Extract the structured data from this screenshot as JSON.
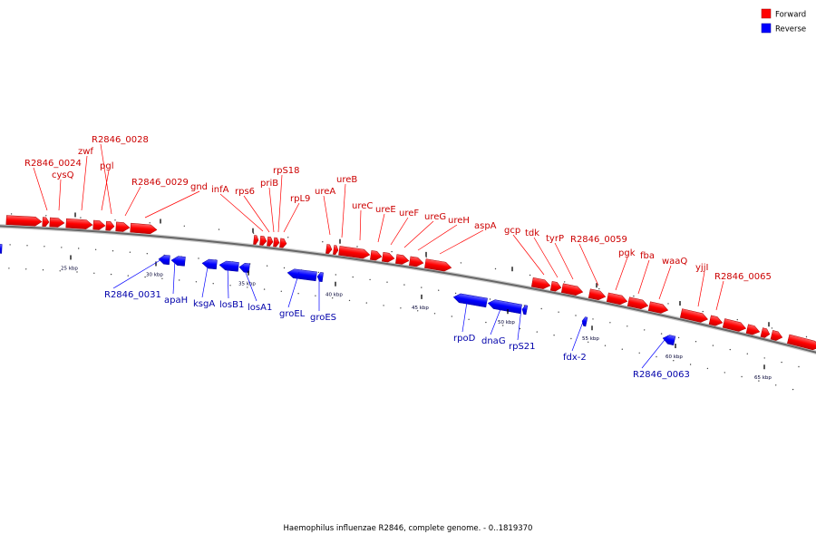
{
  "caption": "Haemophilus influenzae R2846, complete genome. - 0..1819370",
  "legend": [
    {
      "label": "Forward",
      "color": "#ff0000"
    },
    {
      "label": "Reverse",
      "color": "#0000ff"
    }
  ],
  "colors": {
    "forward": "#ff0000",
    "forward_label": "#cc0000",
    "reverse": "#0000ff",
    "reverse_label": "#0000aa",
    "backbone": "#777777"
  },
  "ticks": [
    {
      "label": "25 kbp",
      "kbp": 25
    },
    {
      "label": "30 kbp",
      "kbp": 30
    },
    {
      "label": "35 kbp",
      "kbp": 35
    },
    {
      "label": "40 kbp",
      "kbp": 40
    },
    {
      "label": "45 kbp",
      "kbp": 45
    },
    {
      "label": "50 kbp",
      "kbp": 50
    },
    {
      "label": "55 kbp",
      "kbp": 55
    },
    {
      "label": "60 kbp",
      "kbp": 60
    },
    {
      "label": "65 kbp",
      "kbp": 65
    }
  ],
  "forward_labels": [
    "R2846_0024",
    "cysQ",
    "zwf",
    "R2846_0028",
    "pgl",
    "R2846_0029",
    "gnd",
    "infA",
    "rps6",
    "rpS18",
    "priB",
    "rpL9",
    "ureA",
    "ureB",
    "ureC",
    "ureE",
    "ureF",
    "ureG",
    "ureH",
    "aspA",
    "gcp",
    "tdk",
    "tyrP",
    "R2846_0059",
    "pgk",
    "fba",
    "waaQ",
    "yjjI",
    "R2846_0065"
  ],
  "reverse_labels": [
    "R2846_0031",
    "apaH",
    "ksgA",
    "losB1",
    "losA1",
    "groEL",
    "groES",
    "rpoD",
    "dnaG",
    "rpS21",
    "fdx-2",
    "R2846_0063"
  ]
}
